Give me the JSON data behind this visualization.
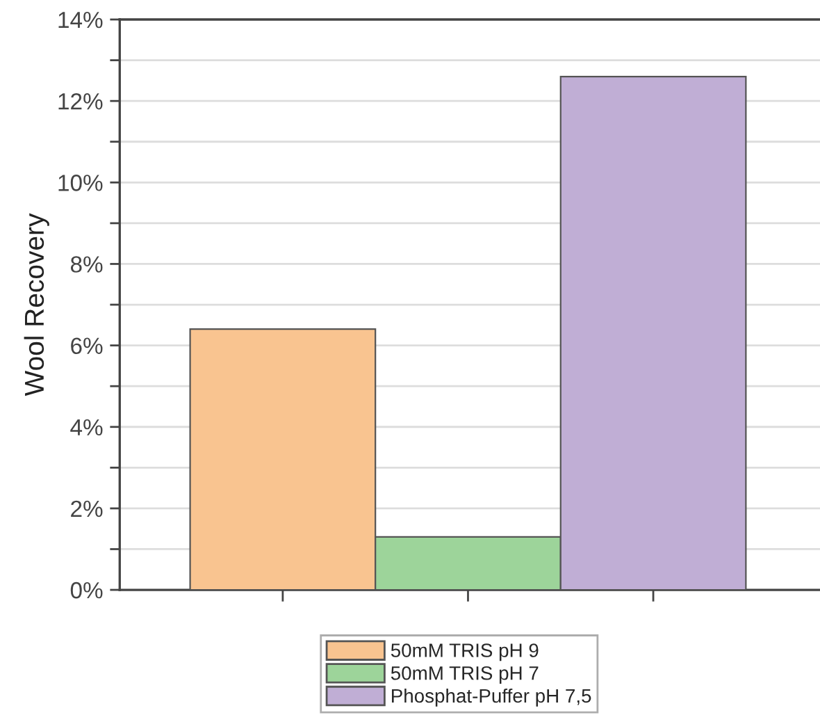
{
  "chart_data": {
    "type": "bar",
    "ylabel": "Wool Recovery",
    "categories": [
      null,
      null,
      null
    ],
    "series": [
      {
        "name": "50mM TRIS pH 9",
        "color": "#f9c490",
        "values": [
          6.4,
          null,
          null
        ]
      },
      {
        "name": "50mM TRIS pH 7",
        "color": "#9dd49a",
        "values": [
          null,
          1.3,
          null
        ]
      },
      {
        "name": "Phosphat-Puffer pH 7,5",
        "color": "#c0aed5",
        "values": [
          null,
          null,
          12.6
        ]
      }
    ],
    "ylim": [
      0,
      14
    ],
    "yticks": [
      {
        "value": 0,
        "label": "0%"
      },
      {
        "value": 1,
        "label": null
      },
      {
        "value": 2,
        "label": "2%"
      },
      {
        "value": 3,
        "label": null
      },
      {
        "value": 4,
        "label": "4%"
      },
      {
        "value": 5,
        "label": null
      },
      {
        "value": 6,
        "label": "6%"
      },
      {
        "value": 7,
        "label": null
      },
      {
        "value": 8,
        "label": "8%"
      },
      {
        "value": 9,
        "label": null
      },
      {
        "value": 10,
        "label": "10%"
      },
      {
        "value": 11,
        "label": null
      },
      {
        "value": 12,
        "label": "12%"
      },
      {
        "value": 13,
        "label": null
      },
      {
        "value": 14,
        "label": "14%"
      }
    ],
    "grid": "y",
    "legend": "bottom",
    "tick_labels": "y"
  }
}
